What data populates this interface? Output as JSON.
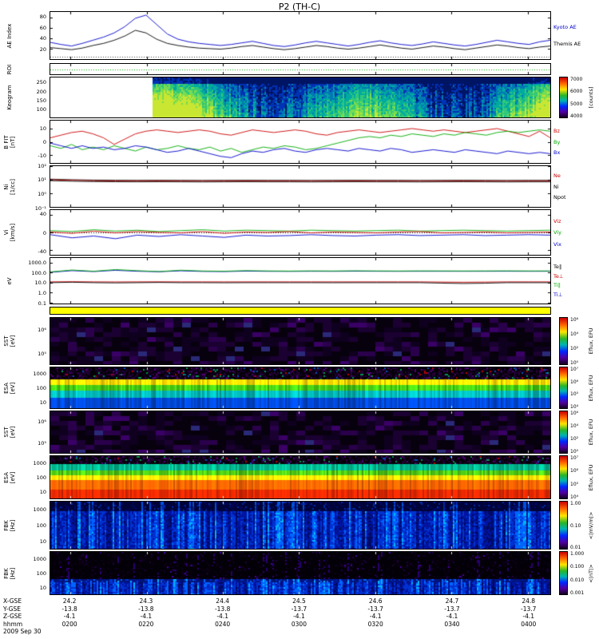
{
  "title": "P2 (TH-C)",
  "footer": {
    "date_label": "2009 Sep 30",
    "rows": [
      {
        "label": "X-GSE",
        "values": [
          "24.2",
          "24.3",
          "24.4",
          "24.5",
          "24.6",
          "24.7",
          "24.8"
        ]
      },
      {
        "label": "Y-GSE",
        "values": [
          "-13.8",
          "-13.8",
          "-13.8",
          "-13.7",
          "-13.7",
          "-13.7",
          "-13.7"
        ]
      },
      {
        "label": "Z-GSE",
        "values": [
          "-4.1",
          "-4.1",
          "-4.1",
          "-4.1",
          "-4.1",
          "-4.1",
          "-4.1"
        ]
      },
      {
        "label": "hhmm",
        "values": [
          "0200",
          "0220",
          "0240",
          "0300",
          "0320",
          "0340",
          "0400"
        ]
      }
    ]
  },
  "chart_data": [
    {
      "id": "ae",
      "type": "line",
      "ylabel": "AE Index",
      "scale": "linear",
      "yrange": [
        0,
        90
      ],
      "yticks": {
        "labels": [
          "80",
          "60",
          "40",
          "20"
        ],
        "values": [
          80,
          60,
          40,
          20
        ]
      },
      "dotted_lines": [
        {
          "value": 4,
          "color": "#444444"
        }
      ],
      "right_labels": [
        {
          "text": "Kyoto AE",
          "color": "#0000cc"
        },
        {
          "text": "Themis AE",
          "color": "#000000"
        }
      ],
      "series": [
        {
          "name": "Kyoto AE",
          "color": "#0000cc",
          "y": [
            32,
            28,
            25,
            30,
            36,
            42,
            50,
            62,
            78,
            84,
            66,
            48,
            38,
            33,
            30,
            28,
            26,
            28,
            31,
            34,
            30,
            26,
            24,
            27,
            31,
            34,
            31,
            28,
            25,
            28,
            32,
            35,
            31,
            28,
            26,
            29,
            33,
            30,
            27,
            25,
            28,
            32,
            36,
            33,
            30,
            28,
            33,
            36
          ]
        },
        {
          "name": "Themis AE",
          "color": "#000000",
          "y": [
            22,
            20,
            18,
            21,
            26,
            30,
            36,
            44,
            55,
            50,
            38,
            30,
            26,
            23,
            21,
            20,
            19,
            21,
            24,
            26,
            23,
            20,
            18,
            20,
            23,
            26,
            24,
            21,
            19,
            21,
            24,
            27,
            24,
            21,
            19,
            22,
            25,
            23,
            20,
            18,
            21,
            24,
            27,
            25,
            22,
            20,
            23,
            25
          ]
        }
      ]
    },
    {
      "id": "roi",
      "type": "line",
      "ylabel": "ROI",
      "scale": "linear",
      "yrange": [
        -1,
        1
      ],
      "yticks": {
        "labels": [],
        "values": []
      },
      "dotted_lines": [
        {
          "value": 0,
          "color": "#00aa00"
        }
      ],
      "series": []
    },
    {
      "id": "keogram",
      "type": "spectrogram",
      "style": "keogram",
      "seed": 3,
      "ylabel": "Keogram",
      "scale": "linear",
      "yrange": [
        50,
        280
      ],
      "yticks": {
        "labels": [
          "250",
          "200",
          "150",
          "100"
        ],
        "values": [
          250,
          200,
          150,
          100
        ]
      },
      "data_start_frac": 0.205,
      "colorbar": {
        "ticks": [
          "7000",
          "6000",
          "5000",
          "4000"
        ],
        "label": "[counts]"
      }
    },
    {
      "id": "bfit",
      "type": "line",
      "ylabel": "B FIT\n[nT]",
      "scale": "linear",
      "yrange": [
        -16,
        16
      ],
      "yticks": {
        "labels": [
          "10",
          "0",
          "-10"
        ],
        "values": [
          10,
          0,
          -10
        ]
      },
      "right_labels": [
        {
          "text": "Bz",
          "color": "#cc0000"
        },
        {
          "text": "By",
          "color": "#00aa00"
        },
        {
          "text": "Bx",
          "color": "#0000cc"
        }
      ],
      "series": [
        {
          "name": "Bz",
          "color": "#cc0000",
          "y": [
            3,
            5,
            7,
            8,
            6,
            3,
            -2,
            2,
            6,
            8,
            9,
            8,
            7,
            8,
            9,
            8,
            6,
            5,
            7,
            9,
            8,
            7,
            8,
            9,
            8,
            6,
            5,
            7,
            8,
            9,
            8,
            7,
            8,
            9,
            10,
            9,
            8,
            9,
            8,
            7,
            8,
            9,
            10,
            8,
            6,
            4,
            8,
            3
          ]
        },
        {
          "name": "By",
          "color": "#00aa00",
          "y": [
            -3,
            -5,
            -2,
            -6,
            -4,
            -6,
            -3,
            -5,
            -7,
            -4,
            -6,
            -5,
            -3,
            -5,
            -6,
            -4,
            -7,
            -5,
            -8,
            -6,
            -4,
            -5,
            -3,
            -4,
            -6,
            -5,
            -3,
            -1,
            1,
            3,
            4,
            3,
            5,
            4,
            6,
            5,
            4,
            6,
            5,
            7,
            6,
            5,
            7,
            8,
            7,
            8,
            9,
            8
          ]
        },
        {
          "name": "Bx",
          "color": "#0000cc",
          "y": [
            -1,
            -3,
            -5,
            -3,
            -5,
            -4,
            -6,
            -5,
            -3,
            -4,
            -6,
            -8,
            -7,
            -5,
            -7,
            -9,
            -11,
            -12,
            -9,
            -7,
            -8,
            -6,
            -5,
            -7,
            -8,
            -6,
            -5,
            -6,
            -7,
            -5,
            -6,
            -7,
            -5,
            -6,
            -8,
            -7,
            -6,
            -7,
            -8,
            -6,
            -7,
            -8,
            -9,
            -7,
            -8,
            -9,
            -8,
            -9
          ]
        }
      ]
    },
    {
      "id": "density",
      "type": "line",
      "ylabel": "Ni\n[1/cc]",
      "scale": "log",
      "yrange": [
        0.1,
        100
      ],
      "yticks": {
        "labels": [
          "10²",
          "10¹",
          "10⁰",
          "10⁻¹"
        ],
        "values": [
          100,
          10,
          1,
          0.1
        ]
      },
      "right_labels": [
        {
          "text": "Ne",
          "color": "#cc0000"
        },
        {
          "text": "Ni",
          "color": "#000000"
        },
        {
          "text": "Npot",
          "color": "#000000"
        }
      ],
      "series": [
        {
          "name": "Npot",
          "color": "#000000",
          "y": [
            11,
            10,
            9.4,
            9.1,
            9,
            9.1,
            9,
            8.9,
            9,
            9.1,
            9,
            9,
            8.9,
            9,
            9.1,
            9,
            9,
            8.9,
            9,
            9.1,
            9,
            8.9,
            9,
            9
          ]
        },
        {
          "name": "Ne",
          "color": "#cc0000",
          "y": [
            10,
            9,
            8.4,
            8.1,
            8,
            8.1,
            8,
            7.9,
            8,
            8.1,
            8,
            8,
            7.9,
            8,
            8.1,
            8,
            8,
            7.9,
            8,
            8.1,
            8,
            7.9,
            8,
            8
          ]
        },
        {
          "name": "Ni",
          "color": "#000000",
          "y": [
            8.5,
            7.8,
            7.3,
            7.1,
            7,
            7.1,
            7,
            6.9,
            7,
            7.1,
            7,
            7,
            6.9,
            7,
            7.1,
            7,
            7,
            6.9,
            7,
            7.1,
            7,
            6.9,
            7,
            7
          ]
        }
      ]
    },
    {
      "id": "velocity",
      "type": "line",
      "ylabel": "Vi\n[km/s]",
      "scale": "linear",
      "yrange": [
        -50,
        50
      ],
      "yticks": {
        "labels": [
          "40",
          "0",
          "-40"
        ],
        "values": [
          40,
          0,
          -40
        ]
      },
      "dotted_lines": [
        {
          "value": 0,
          "color": "#000000"
        }
      ],
      "right_labels": [
        {
          "text": "Viz",
          "color": "#cc0000"
        },
        {
          "text": "Viy",
          "color": "#00aa00"
        },
        {
          "text": "Vix",
          "color": "#0000cc"
        }
      ],
      "series": [
        {
          "name": "Vix",
          "color": "#0000cc",
          "y": [
            -5,
            -12,
            -8,
            -14,
            -6,
            -9,
            -5,
            -8,
            -11,
            -6,
            -8,
            -7,
            -5,
            -7,
            -8,
            -6,
            -5,
            -7,
            -6,
            -5,
            -7,
            -6,
            -5,
            -6
          ]
        },
        {
          "name": "Viy",
          "color": "#00aa00",
          "y": [
            4,
            2,
            6,
            3,
            5,
            2,
            4,
            6,
            3,
            5,
            4,
            3,
            5,
            4,
            3,
            4,
            5,
            3,
            4,
            5,
            4,
            3,
            4,
            5
          ]
        },
        {
          "name": "Viz",
          "color": "#cc0000",
          "y": [
            1,
            -2,
            3,
            -1,
            2,
            0,
            -1,
            2,
            -2,
            1,
            0,
            2,
            -1,
            1,
            0,
            -1,
            1,
            2,
            -1,
            0,
            1,
            -1,
            0,
            1
          ]
        }
      ]
    },
    {
      "id": "temperature",
      "type": "line",
      "ylabel": "eV",
      "scale": "log",
      "yrange": [
        0.08,
        3000
      ],
      "yticks": {
        "labels": [
          "1000.0",
          "100.0",
          "10.0",
          "1.0",
          "0.1"
        ],
        "values": [
          1000,
          100,
          10,
          1,
          0.1
        ]
      },
      "right_labels": [
        {
          "text": "Te∥",
          "color": "#000000"
        },
        {
          "text": "Te⊥",
          "color": "#cc0000"
        },
        {
          "text": "Ti∥",
          "color": "#00aa00"
        },
        {
          "text": "Ti⊥",
          "color": "#0000cc"
        }
      ],
      "series": [
        {
          "name": "Ti⊥",
          "color": "#0000cc",
          "y": [
            110,
            160,
            130,
            175,
            140,
            125,
            155,
            135,
            130,
            145,
            138,
            136,
            140,
            138,
            142,
            140,
            138,
            140,
            140,
            139,
            140,
            141,
            139,
            140
          ]
        },
        {
          "name": "Ti∥",
          "color": "#00aa00",
          "y": [
            120,
            185,
            140,
            205,
            160,
            130,
            178,
            148,
            140,
            162,
            150,
            145,
            152,
            148,
            156,
            150,
            147,
            152,
            150,
            148,
            150,
            153,
            149,
            150
          ]
        },
        {
          "name": "Te⊥",
          "color": "#cc0000",
          "y": [
            12,
            12.5,
            12,
            11.8,
            12,
            12.2,
            12,
            12,
            11.9,
            12,
            12,
            12,
            12,
            12,
            12,
            12,
            12,
            12,
            11.5,
            11,
            11.5,
            12,
            12,
            12
          ]
        },
        {
          "name": "Te∥",
          "color": "#000000",
          "y": [
            10,
            11,
            10,
            9.5,
            10,
            10.5,
            10,
            10,
            9.8,
            10,
            10,
            10,
            10,
            9.9,
            10,
            10,
            10,
            10,
            9,
            8.2,
            8.8,
            10,
            10,
            10
          ]
        }
      ]
    },
    {
      "id": "flags",
      "type": "bar",
      "color": "#ffff00"
    },
    {
      "id": "sst_ion",
      "type": "spectrogram",
      "style": "sst",
      "seed": 11,
      "ylabel": "SST\n[eV]",
      "yticks": {
        "labels": [
          "10⁶",
          "10⁵"
        ],
        "values": []
      },
      "colorbar": {
        "ticks": [
          "10⁶",
          "10⁴",
          "10²",
          "10⁰"
        ],
        "label": "Eflux, EFU"
      }
    },
    {
      "id": "esa_ion",
      "type": "spectrogram",
      "style": "esa",
      "seed": 21,
      "ylabel": "ESA\n[eV]",
      "yticks": {
        "labels": [
          "1000",
          "100",
          "10"
        ],
        "values": []
      },
      "colorbar": {
        "ticks": [
          "10⁷",
          "10⁶",
          "10⁵",
          "10⁴"
        ],
        "label": "Eflux, EFU"
      },
      "bands": [
        {
          "f0": 0.0,
          "f1": 0.3,
          "type": "speckle"
        },
        {
          "f0": 0.3,
          "f1": 0.44,
          "type": "solid",
          "color": "#ffdc00"
        },
        {
          "f0": 0.44,
          "f1": 0.58,
          "type": "solid",
          "color": "#46c814"
        },
        {
          "f0": 0.58,
          "f1": 0.76,
          "type": "solid",
          "color": "#00b4b4"
        },
        {
          "f0": 0.76,
          "f1": 1.0,
          "type": "solid",
          "color": "#0046d2"
        }
      ]
    },
    {
      "id": "sst_electron",
      "type": "spectrogram",
      "style": "sst",
      "seed": 31,
      "ylabel": "SST\n[eV]",
      "yticks": {
        "labels": [
          "10⁶",
          "10⁵"
        ],
        "values": []
      },
      "colorbar": {
        "ticks": [
          "10⁶",
          "10⁴",
          "10²",
          "10⁰"
        ],
        "label": "Eflux, EFU"
      }
    },
    {
      "id": "esa_electron",
      "type": "spectrogram",
      "style": "esa",
      "seed": 41,
      "ylabel": "ESA\n[eV]",
      "yticks": {
        "labels": [
          "1000",
          "100",
          "10"
        ],
        "values": []
      },
      "colorbar": {
        "ticks": [
          "10⁷",
          "10⁶",
          "10⁵",
          "10⁴"
        ],
        "label": "Eflux, EFU"
      },
      "bands": [
        {
          "f0": 0.0,
          "f1": 0.2,
          "type": "speckle"
        },
        {
          "f0": 0.2,
          "f1": 0.34,
          "type": "solid",
          "color": "#00b48c"
        },
        {
          "f0": 0.34,
          "f1": 0.46,
          "type": "solid",
          "color": "#50c814"
        },
        {
          "f0": 0.46,
          "f1": 0.58,
          "type": "solid",
          "color": "#ffe000"
        },
        {
          "f0": 0.58,
          "f1": 0.8,
          "type": "solid",
          "color": "#ff6400"
        },
        {
          "f0": 0.8,
          "f1": 1.0,
          "type": "solid",
          "color": "#e62800"
        }
      ]
    },
    {
      "id": "fbk_e",
      "type": "spectrogram",
      "style": "fbk",
      "variant": "e",
      "seed": 51,
      "dark_frac": 0.18,
      "ylabel": "FBK\n[Hz]",
      "yticks": {
        "labels": [
          "1000",
          "100",
          "10"
        ],
        "values": []
      },
      "colorbar": {
        "ticks": [
          "1.00",
          "0.10",
          "0.01"
        ],
        "label": "<|mV/m|>"
      }
    },
    {
      "id": "fbk_b",
      "type": "spectrogram",
      "style": "fbk",
      "variant": "b",
      "seed": 61,
      "dark_frac": 0.62,
      "ylabel": "FBK\n[Hz]",
      "yticks": {
        "labels": [
          "1000",
          "100",
          "10"
        ],
        "values": []
      },
      "colorbar": {
        "ticks": [
          "1.000",
          "0.100",
          "0.010",
          "0.001"
        ],
        "label": "<|nT|>"
      }
    }
  ]
}
